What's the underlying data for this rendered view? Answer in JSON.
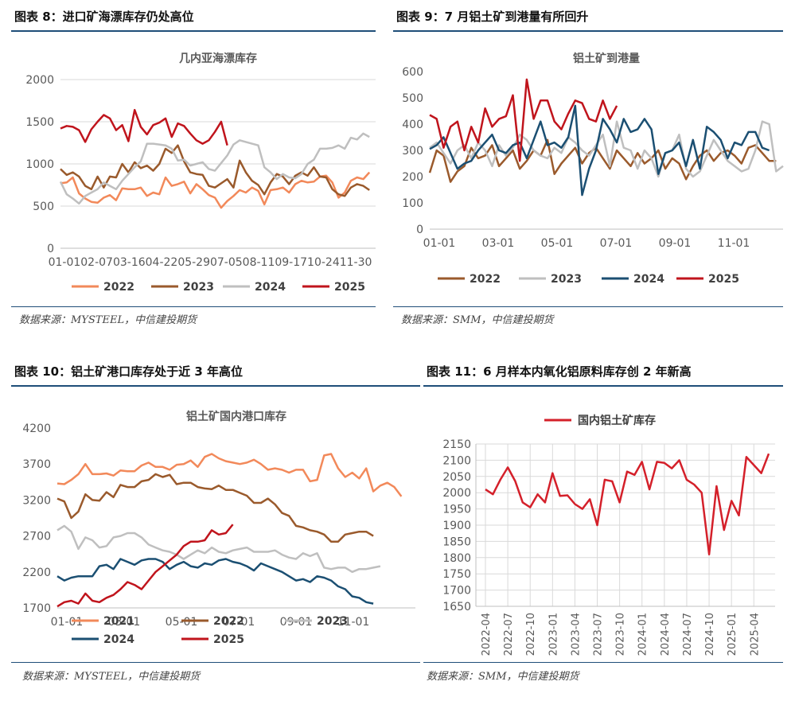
{
  "panels": [
    {
      "heading": "图表 8：进口矿海漂库存仍处高位",
      "source": "数据来源：MYSTEEL，中信建投期货",
      "chart": {
        "title": "几内亚海漂库存",
        "yticks": [
          "0",
          "500",
          "1000",
          "1500",
          "2000"
        ],
        "xticks": [
          "01-0102-0703-1604-2205-2907-0508-1109-1710-2411-30"
        ]
      }
    },
    {
      "heading": "图表 9：7 月铝土矿到港量有所回升",
      "source": "数据来源：SMM，中信建投期货",
      "chart": {
        "title": "铝土矿到港量",
        "yticks": [
          "0",
          "100",
          "200",
          "300",
          "400",
          "500",
          "600"
        ],
        "xticks": [
          "01-01",
          "03-01",
          "05-01",
          "07-01",
          "09-01",
          "11-01"
        ]
      }
    },
    {
      "heading": "图表 10：铝土矿港口库存处于近 3 年高位",
      "source": "数据来源：MYSTEEL，中信建投期货",
      "chart": {
        "title": "铝土矿国内港口库存",
        "yticks": [
          "1700",
          "2200",
          "2700",
          "3200",
          "3700",
          "4200"
        ],
        "xticks": [
          "01-01",
          "03-01",
          "05-01",
          "07-01",
          "09-01",
          "11-01"
        ]
      }
    },
    {
      "heading": "图表 11：6 月样本内氧化铝原料库存创 2 年新高",
      "source": "数据来源：SMM，中信建投期货",
      "chart": {
        "yticks": [
          "1650",
          "1700",
          "1750",
          "1800",
          "1850",
          "1900",
          "1950",
          "2000",
          "2050",
          "2100",
          "2150"
        ],
        "xticks": [
          "2022-04",
          "2022-07",
          "2022-10",
          "2023-01",
          "2023-04",
          "2023-07",
          "2023-10",
          "2024-01",
          "2024-04",
          "2024-07",
          "2024-10",
          "2025-01",
          "2025-04"
        ]
      }
    }
  ],
  "colors": {
    "s2021": "#f2895a",
    "s2022": "#9a5a2c",
    "s2023": "#bfbfbf",
    "s2024": "#1b4f72",
    "s2025": "#c0141c",
    "red_single": "#d4202a"
  },
  "chart_data": [
    {
      "type": "line",
      "title": "几内亚海漂库存",
      "ylim": [
        0,
        2000
      ],
      "x_index_max": 51,
      "series": [
        {
          "name": "2022",
          "color_key": "s2022_light",
          "values": [
            770,
            780,
            840,
            650,
            590,
            550,
            540,
            600,
            630,
            570,
            710,
            700,
            700,
            720,
            620,
            660,
            640,
            840,
            740,
            760,
            790,
            650,
            760,
            700,
            630,
            600,
            480,
            560,
            620,
            690,
            660,
            720,
            680,
            520,
            690,
            700,
            720,
            660,
            760,
            800,
            780,
            790,
            850,
            860,
            780,
            600,
            660,
            800,
            840,
            820,
            900
          ]
        },
        {
          "name": "2023",
          "color_key": "s2022",
          "values": [
            940,
            870,
            900,
            850,
            740,
            700,
            850,
            720,
            850,
            840,
            1000,
            900,
            1020,
            950,
            980,
            920,
            1000,
            1180,
            1130,
            1220,
            1030,
            900,
            880,
            870,
            740,
            720,
            770,
            820,
            720,
            1040,
            900,
            800,
            750,
            640,
            780,
            880,
            850,
            760,
            860,
            900,
            860,
            960,
            850,
            840,
            700,
            640,
            620,
            720,
            760,
            740,
            690
          ]
        },
        {
          "name": "2024",
          "color_key": "s2023",
          "values": [
            790,
            640,
            590,
            530,
            620,
            660,
            700,
            780,
            740,
            700,
            800,
            880,
            960,
            1030,
            1240,
            1240,
            1230,
            1220,
            1180,
            1040,
            1050,
            980,
            1000,
            1020,
            940,
            920,
            1010,
            1100,
            1230,
            1280,
            1260,
            1240,
            1220,
            960,
            900,
            820,
            880,
            840,
            830,
            880,
            1000,
            1050,
            1180,
            1180,
            1190,
            1220,
            1180,
            1310,
            1290,
            1360,
            1320
          ]
        },
        {
          "name": "2025",
          "color_key": "s2025",
          "values": [
            1420,
            1450,
            1440,
            1400,
            1260,
            1410,
            1500,
            1580,
            1540,
            1400,
            1460,
            1270,
            1640,
            1440,
            1350,
            1460,
            1490,
            1540,
            1320,
            1480,
            1450,
            1360,
            1280,
            1240,
            1280,
            1380,
            1500,
            1220
          ]
        }
      ],
      "legend": [
        "2022",
        "2023",
        "2024",
        "2025"
      ]
    },
    {
      "type": "line",
      "title": "铝土矿到港量",
      "ylim": [
        0,
        600
      ],
      "x_index_max": 51,
      "series": [
        {
          "name": "2022",
          "color_key": "s2022",
          "values": [
            215,
            300,
            280,
            180,
            220,
            240,
            310,
            270,
            280,
            320,
            240,
            270,
            300,
            230,
            260,
            300,
            280,
            340,
            210,
            250,
            280,
            310,
            250,
            290,
            310,
            270,
            230,
            300,
            270,
            240,
            290,
            250,
            270,
            300,
            230,
            270,
            250,
            190,
            240,
            280,
            300,
            260,
            290,
            300,
            280,
            250,
            310,
            320,
            290,
            260,
            260
          ]
        },
        {
          "name": "2023",
          "color_key": "s2023",
          "values": [
            310,
            330,
            290,
            250,
            300,
            320,
            270,
            330,
            300,
            240,
            320,
            280,
            310,
            360,
            340,
            300,
            280,
            270,
            310,
            290,
            350,
            330,
            300,
            280,
            320,
            360,
            240,
            410,
            310,
            300,
            230,
            300,
            270,
            200,
            290,
            300,
            360,
            230,
            200,
            220,
            280,
            340,
            300,
            260,
            240,
            220,
            230,
            300,
            410,
            400,
            220,
            240
          ]
        },
        {
          "name": "2024",
          "color_key": "s2024",
          "values": [
            305,
            320,
            350,
            290,
            230,
            250,
            260,
            300,
            330,
            360,
            300,
            290,
            320,
            330,
            270,
            340,
            410,
            320,
            330,
            310,
            350,
            470,
            130,
            230,
            300,
            420,
            380,
            330,
            420,
            370,
            380,
            420,
            380,
            210,
            290,
            300,
            330,
            240,
            340,
            230,
            390,
            370,
            340,
            270,
            330,
            320,
            370,
            370,
            310,
            300
          ]
        },
        {
          "name": "2025",
          "color_key": "s2025",
          "values": [
            435,
            420,
            310,
            390,
            410,
            300,
            390,
            330,
            460,
            390,
            420,
            430,
            510,
            260,
            570,
            420,
            490,
            490,
            410,
            380,
            440,
            490,
            480,
            420,
            410,
            490,
            420,
            470
          ]
        }
      ],
      "legend": [
        "2022",
        "2023",
        "2024",
        "2025"
      ]
    },
    {
      "type": "line",
      "title": "铝土矿国内港口库存",
      "ylim": [
        1700,
        4200
      ],
      "x_index_max": 51,
      "series": [
        {
          "name": "2021",
          "color_key": "s2021",
          "values": [
            3430,
            3420,
            3480,
            3560,
            3700,
            3560,
            3560,
            3570,
            3540,
            3610,
            3600,
            3600,
            3680,
            3720,
            3660,
            3660,
            3620,
            3690,
            3700,
            3750,
            3660,
            3800,
            3840,
            3780,
            3740,
            3720,
            3700,
            3720,
            3760,
            3700,
            3620,
            3640,
            3620,
            3580,
            3620,
            3620,
            3460,
            3480,
            3820,
            3840,
            3640,
            3520,
            3580,
            3500,
            3640,
            3320,
            3400,
            3440,
            3380,
            3250
          ]
        },
        {
          "name": "2022",
          "color_key": "s2022",
          "values": [
            3220,
            3180,
            2950,
            3040,
            3280,
            3200,
            3190,
            3310,
            3240,
            3410,
            3380,
            3380,
            3460,
            3480,
            3560,
            3520,
            3550,
            3420,
            3440,
            3440,
            3380,
            3360,
            3350,
            3400,
            3340,
            3340,
            3300,
            3260,
            3160,
            3160,
            3220,
            3140,
            3020,
            2980,
            2840,
            2820,
            2780,
            2760,
            2720,
            2620,
            2620,
            2720,
            2740,
            2760,
            2760,
            2700
          ]
        },
        {
          "name": "2023",
          "color_key": "s2023",
          "values": [
            2780,
            2840,
            2760,
            2520,
            2680,
            2640,
            2540,
            2560,
            2680,
            2700,
            2740,
            2740,
            2680,
            2580,
            2540,
            2500,
            2480,
            2440,
            2380,
            2440,
            2500,
            2460,
            2540,
            2480,
            2460,
            2500,
            2520,
            2540,
            2480,
            2480,
            2480,
            2500,
            2440,
            2400,
            2380,
            2460,
            2420,
            2460,
            2260,
            2240,
            2260,
            2260,
            2200,
            2240,
            2240,
            2260,
            2280
          ]
        },
        {
          "name": "2024",
          "color_key": "s2024",
          "values": [
            2140,
            2080,
            2120,
            2140,
            2140,
            2140,
            2280,
            2300,
            2240,
            2380,
            2340,
            2300,
            2360,
            2380,
            2380,
            2340,
            2240,
            2300,
            2340,
            2280,
            2260,
            2320,
            2300,
            2360,
            2380,
            2340,
            2320,
            2280,
            2220,
            2320,
            2280,
            2240,
            2200,
            2140,
            2080,
            2100,
            2060,
            2140,
            2120,
            2080,
            2000,
            1960,
            1860,
            1840,
            1780,
            1760
          ]
        },
        {
          "name": "2025",
          "color_key": "s2025",
          "values": [
            1720,
            1780,
            1800,
            1760,
            1900,
            1800,
            1780,
            1840,
            1880,
            1960,
            2060,
            2020,
            1960,
            2080,
            2200,
            2280,
            2360,
            2440,
            2560,
            2620,
            2620,
            2640,
            2780,
            2720,
            2740,
            2860
          ]
        }
      ],
      "legend": [
        "2021",
        "2022",
        "2023",
        "2024",
        "2025"
      ]
    },
    {
      "type": "line",
      "title": "",
      "ylim": [
        1650,
        2150
      ],
      "categories": [
        "2022-04",
        "2022-05",
        "2022-06",
        "2022-07",
        "2022-08",
        "2022-09",
        "2022-10",
        "2022-11",
        "2022-12",
        "2023-01",
        "2023-02",
        "2023-03",
        "2023-04",
        "2023-05",
        "2023-06",
        "2023-07",
        "2023-08",
        "2023-09",
        "2023-10",
        "2023-11",
        "2023-12",
        "2024-01",
        "2024-02",
        "2024-03",
        "2024-04",
        "2024-05",
        "2024-06",
        "2024-07",
        "2024-08",
        "2024-09",
        "2024-10",
        "2024-11",
        "2024-12",
        "2025-01",
        "2025-02",
        "2025-03",
        "2025-04",
        "2025-05",
        "2025-06"
      ],
      "series": [
        {
          "name": "国内铝土矿库存",
          "color_key": "red_single",
          "values": [
            2010,
            1995,
            2040,
            2078,
            2035,
            1970,
            1955,
            1995,
            1970,
            2060,
            1990,
            1992,
            1965,
            1950,
            1980,
            1900,
            2040,
            2035,
            1970,
            2065,
            2055,
            2095,
            2010,
            2095,
            2092,
            2075,
            2100,
            2040,
            2025,
            2000,
            1810,
            2020,
            1885,
            1975,
            1930,
            2110,
            2085,
            2060,
            2120
          ]
        }
      ],
      "legend": [
        "国内铝土矿库存"
      ]
    }
  ]
}
